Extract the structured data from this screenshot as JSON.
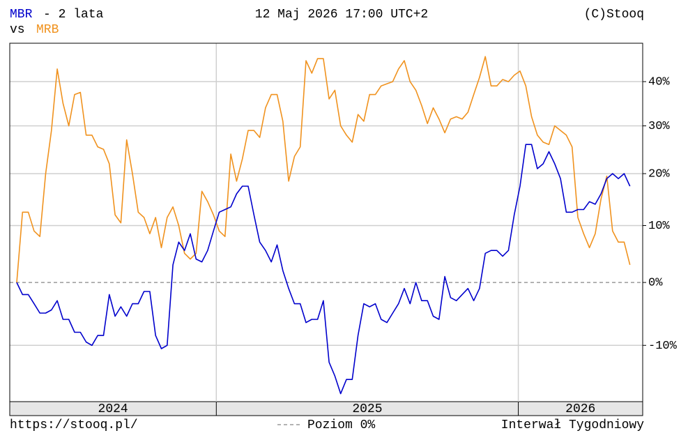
{
  "chart_data": {
    "type": "line",
    "title": "- 2 lata",
    "timestamp": "12 Maj 2026 17:00 UTC+2",
    "source": "(C)Stooq",
    "vs_label": "vs",
    "url": "https://stooq.pl/",
    "interval": "Interwał Tygodniowy",
    "level_line": {
      "value": 0,
      "label": "Poziom 0%",
      "color": "#999999"
    },
    "log_scale": true,
    "grid": true,
    "years": [
      "2024",
      "2025",
      "2026"
    ],
    "year_starts": [
      34.5,
      86.7
    ],
    "xlim": [
      -1.2,
      108.2
    ],
    "ylim": [
      -18.1,
      49.3
    ],
    "yticks": [
      {
        "value": -10,
        "label": "-10%"
      },
      {
        "value": 0,
        "label": "0%"
      },
      {
        "value": 10,
        "label": "10%"
      },
      {
        "value": 20,
        "label": "20%"
      },
      {
        "value": 30,
        "label": "30%"
      },
      {
        "value": 40,
        "label": "40%"
      }
    ],
    "series": [
      {
        "name": "MBR",
        "color": "#0000cc",
        "values": [
          0,
          -2,
          -2,
          -3.5,
          -5,
          -5,
          -4.5,
          -3,
          -6,
          -6,
          -8,
          -8,
          -9.5,
          -10,
          -8.5,
          -8.5,
          -2,
          -5.5,
          -4,
          -5.5,
          -3.5,
          -3.5,
          -1.5,
          -1.5,
          -8.5,
          -10.5,
          -10,
          3,
          7,
          5.5,
          8.5,
          4,
          3.5,
          5.5,
          9,
          12.5,
          13,
          13.5,
          16,
          17.5,
          17.5,
          12,
          7,
          5.5,
          3.5,
          6.5,
          2,
          -1,
          -3.5,
          -3.5,
          -6.5,
          -6,
          -6,
          -3,
          -12.5,
          -14.5,
          -17,
          -15,
          -15,
          -8.5,
          -3.5,
          -4,
          -3.5,
          -6,
          -6.5,
          -5,
          -3.5,
          -1,
          -3.5,
          0,
          -3,
          -3,
          -5.5,
          -6,
          1,
          -2.5,
          -3,
          -2,
          -1,
          -3,
          -1,
          5,
          5.5,
          5.5,
          4.5,
          5.5,
          12,
          17.5,
          26,
          26,
          21,
          22,
          24.5,
          22,
          19,
          12.5,
          12.5,
          13,
          13,
          14.5,
          14,
          16,
          19,
          20,
          19,
          20,
          17.5
        ]
      },
      {
        "name": "MRB",
        "color": "#f0921e",
        "values": [
          0,
          12.5,
          12.5,
          9,
          8,
          20,
          29,
          43,
          35,
          30,
          37,
          37.5,
          28,
          28,
          25.5,
          25,
          22,
          12,
          10.5,
          27,
          20,
          12.5,
          11.5,
          8.5,
          11.5,
          6,
          11.5,
          13.5,
          10,
          5,
          4,
          5,
          16.5,
          14.5,
          12,
          9,
          8,
          24,
          18.5,
          23,
          29,
          29,
          27.5,
          34,
          37,
          37,
          31,
          18.5,
          23.5,
          25.5,
          45,
          42,
          45.5,
          45.5,
          36,
          38,
          30,
          28,
          26.5,
          32.5,
          31,
          37,
          37,
          39,
          39.5,
          40,
          43,
          45,
          40,
          38,
          34.5,
          30.5,
          34,
          31.5,
          28.5,
          31.5,
          32,
          31.5,
          33,
          37,
          41,
          46,
          39,
          39,
          40.5,
          40,
          41.5,
          42.5,
          39,
          32,
          28,
          26.5,
          26,
          30,
          29,
          28,
          25.5,
          11.5,
          8.5,
          6,
          8.5,
          15,
          19.5,
          9,
          7,
          7,
          3
        ]
      }
    ]
  }
}
